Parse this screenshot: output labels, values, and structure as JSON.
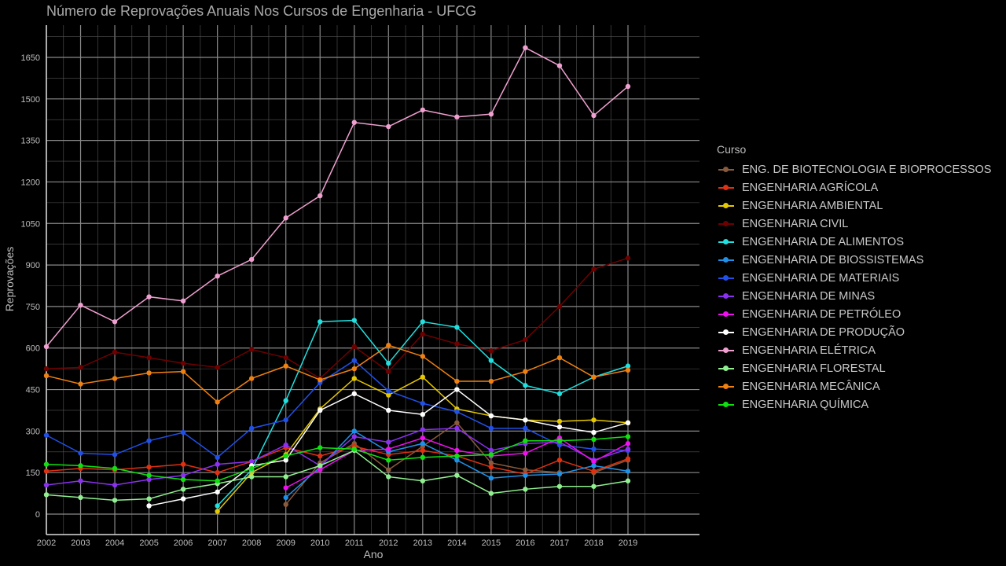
{
  "chart_data": {
    "type": "line",
    "title": "Número de Reprovações Anuais Nos Cursos de Engenharia - UFCG",
    "xlabel": "Ano",
    "ylabel": "Reprovações",
    "x": [
      2002,
      2003,
      2004,
      2005,
      2006,
      2007,
      2008,
      2009,
      2010,
      2011,
      2012,
      2013,
      2014,
      2015,
      2016,
      2017,
      2018,
      2019
    ],
    "xlim": [
      2002,
      2019
    ],
    "ylim": [
      -75,
      1770
    ],
    "yticks": [
      0,
      150,
      300,
      450,
      600,
      750,
      900,
      1050,
      1200,
      1350,
      1500,
      1650
    ],
    "grid": true,
    "legend": {
      "title": "Curso",
      "position": "right"
    },
    "series": [
      {
        "name": "ENG. DE BIOTECNOLOGIA E BIOPROCESSOS",
        "color": "#8a5a3c",
        "values": [
          null,
          null,
          null,
          null,
          null,
          null,
          null,
          35,
          185,
          255,
          160,
          245,
          330,
          185,
          160,
          150,
          150,
          195
        ]
      },
      {
        "name": "ENGENHARIA AGRÍCOLA",
        "color": "#e03010",
        "values": [
          155,
          165,
          160,
          170,
          180,
          150,
          190,
          240,
          210,
          245,
          215,
          230,
          210,
          170,
          145,
          195,
          155,
          200
        ]
      },
      {
        "name": "ENGENHARIA AMBIENTAL",
        "color": "#e6c800",
        "values": [
          null,
          null,
          null,
          null,
          null,
          10,
          150,
          215,
          380,
          490,
          430,
          495,
          380,
          355,
          340,
          335,
          340,
          330
        ]
      },
      {
        "name": "ENGENHARIA CIVIL",
        "color": "#6e0000",
        "values": [
          525,
          530,
          585,
          565,
          545,
          530,
          595,
          565,
          490,
          605,
          515,
          650,
          615,
          590,
          630,
          750,
          885,
          925
        ]
      },
      {
        "name": "ENGENHARIA DE ALIMENTOS",
        "color": "#20e0e0",
        "values": [
          null,
          null,
          null,
          null,
          null,
          30,
          160,
          410,
          695,
          700,
          545,
          695,
          675,
          555,
          465,
          435,
          495,
          535
        ]
      },
      {
        "name": "ENGENHARIA DE BIOSSISTEMAS",
        "color": "#1e90e8",
        "values": [
          null,
          null,
          null,
          null,
          null,
          null,
          null,
          60,
          170,
          300,
          225,
          255,
          195,
          130,
          140,
          145,
          175,
          155
        ]
      },
      {
        "name": "ENGENHARIA DE MATERIAIS",
        "color": "#2050e8",
        "values": [
          285,
          220,
          215,
          265,
          295,
          205,
          310,
          340,
          475,
          555,
          445,
          400,
          370,
          310,
          310,
          250,
          235,
          230
        ]
      },
      {
        "name": "ENGENHARIA DE MINAS",
        "color": "#8a30f0",
        "values": [
          105,
          120,
          105,
          125,
          140,
          180,
          190,
          250,
          175,
          280,
          260,
          305,
          310,
          230,
          255,
          260,
          195,
          235
        ]
      },
      {
        "name": "ENGENHARIA DE PETRÓLEO",
        "color": "#ee10ee",
        "values": [
          null,
          null,
          null,
          null,
          null,
          null,
          null,
          95,
          160,
          230,
          235,
          275,
          230,
          210,
          220,
          275,
          190,
          255
        ]
      },
      {
        "name": "ENGENHARIA DE PRODUÇÃO",
        "color": "#ffffff",
        "values": [
          null,
          null,
          null,
          30,
          55,
          80,
          175,
          195,
          375,
          435,
          375,
          360,
          450,
          355,
          340,
          315,
          295,
          330
        ]
      },
      {
        "name": "ENGENHARIA ELÉTRICA",
        "color": "#f0a0d0",
        "values": [
          605,
          755,
          695,
          785,
          770,
          860,
          920,
          1070,
          1150,
          1415,
          1400,
          1460,
          1435,
          1445,
          1685,
          1620,
          1440,
          1545
        ]
      },
      {
        "name": "ENGENHARIA FLORESTAL",
        "color": "#90f090",
        "values": [
          70,
          60,
          50,
          55,
          90,
          110,
          135,
          135,
          175,
          230,
          135,
          120,
          140,
          75,
          90,
          100,
          100,
          120
        ]
      },
      {
        "name": "ENGENHARIA MECÂNICA",
        "color": "#f08010",
        "values": [
          500,
          470,
          490,
          510,
          515,
          405,
          490,
          535,
          485,
          525,
          610,
          570,
          480,
          480,
          515,
          565,
          495,
          520
        ]
      },
      {
        "name": "ENGENHARIA QUÍMICA",
        "color": "#10e010",
        "values": [
          180,
          175,
          165,
          140,
          125,
          120,
          165,
          210,
          240,
          235,
          195,
          205,
          210,
          215,
          265,
          265,
          270,
          280
        ]
      }
    ]
  }
}
